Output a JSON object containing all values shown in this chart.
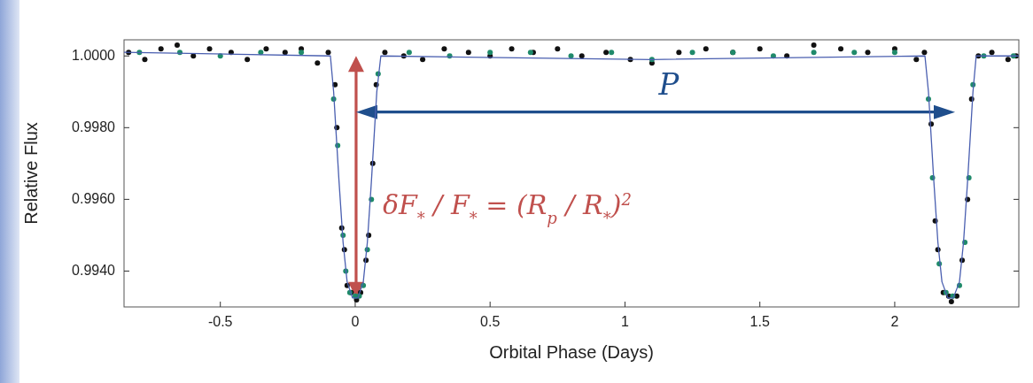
{
  "chart_data": {
    "type": "scatter",
    "xlabel": "Orbital Phase (Days)",
    "ylabel": "Relative Flux",
    "xlim": [
      -0.857,
      2.46
    ],
    "ylim": [
      0.993,
      1.00045
    ],
    "xticks": [
      -0.5,
      0,
      0.5,
      1,
      1.5,
      2
    ],
    "yticks": [
      {
        "value": 0.994,
        "label": "0.9940"
      },
      {
        "value": 0.996,
        "label": "0.9960"
      },
      {
        "value": 0.998,
        "label": "0.9980"
      },
      {
        "value": 1,
        "label": "1.0000"
      }
    ],
    "grid": false,
    "annotations": [
      "P",
      "δF$_{*}$ / F$_{*}$ = (R$_{p}$ / R$_{*}$)$^{2}$"
    ],
    "series": [
      {
        "marker": "circle",
        "color": "#111111",
        "x": [
          -0.84,
          -0.78,
          -0.72,
          -0.66,
          -0.6,
          -0.54,
          -0.46,
          -0.4,
          -0.33,
          -0.26,
          -0.2,
          -0.14,
          -0.1,
          -0.075,
          -0.068,
          -0.05,
          -0.04,
          -0.03,
          -0.015,
          0.005,
          0.02,
          0.04,
          0.05,
          0.065,
          0.078,
          0.11,
          0.18,
          0.25,
          0.33,
          0.42,
          0.5,
          0.58,
          0.66,
          0.75,
          0.84,
          0.93,
          1.02,
          1.1,
          1.2,
          1.3,
          1.4,
          1.5,
          1.6,
          1.7,
          1.8,
          1.9,
          2.0,
          2.08,
          2.11,
          2.135,
          2.15,
          2.16,
          2.18,
          2.2,
          2.21,
          2.23,
          2.25,
          2.27,
          2.285,
          2.31,
          2.36,
          2.42,
          2.45
        ],
        "values": [
          1.0001,
          0.9999,
          1.0002,
          1.0003,
          1.0,
          1.0002,
          1.0001,
          0.9999,
          1.0002,
          1.0001,
          1.0002,
          0.9998,
          1.0001,
          0.9992,
          0.998,
          0.9952,
          0.9946,
          0.9936,
          0.9934,
          0.9932,
          0.9934,
          0.9943,
          0.995,
          0.997,
          0.9992,
          1.0001,
          1.0,
          0.9999,
          1.0002,
          1.0001,
          1.0,
          1.0002,
          1.0001,
          1.0002,
          1.0,
          1.0001,
          0.9999,
          0.9998,
          1.0001,
          1.0002,
          1.0001,
          1.0002,
          1.0,
          1.0003,
          1.0002,
          1.0001,
          1.0002,
          0.9999,
          1.0001,
          0.9981,
          0.9954,
          0.9946,
          0.9934,
          0.9933,
          0.99315,
          0.9933,
          0.9943,
          0.996,
          0.9988,
          1.0,
          1.0001,
          0.9999,
          1.0
        ]
      },
      {
        "marker": "circle",
        "color": "#1f8a6a",
        "x": [
          -0.8,
          -0.65,
          -0.5,
          -0.35,
          -0.2,
          -0.08,
          -0.065,
          -0.045,
          -0.035,
          -0.02,
          0.0,
          0.015,
          0.03,
          0.045,
          0.06,
          0.085,
          0.2,
          0.35,
          0.5,
          0.65,
          0.8,
          0.95,
          1.1,
          1.25,
          1.4,
          1.55,
          1.7,
          1.85,
          2.0,
          2.125,
          2.14,
          2.165,
          2.19,
          2.215,
          2.24,
          2.26,
          2.275,
          2.29,
          2.33,
          2.44
        ],
        "values": [
          1.0001,
          1.0001,
          1.0,
          1.0001,
          1.0001,
          0.9988,
          0.9975,
          0.995,
          0.994,
          0.9934,
          0.9933,
          0.9933,
          0.9936,
          0.9946,
          0.996,
          0.9995,
          1.0001,
          1.0,
          1.0001,
          1.0001,
          1.0,
          1.0001,
          0.9999,
          1.0001,
          1.0001,
          1.0,
          1.0001,
          1.0001,
          1.0001,
          0.9988,
          0.9966,
          0.9942,
          0.9934,
          0.9933,
          0.9936,
          0.9948,
          0.9966,
          0.9992,
          1.0,
          1.0
        ]
      },
      {
        "type": "line",
        "color": "#4a5fb0",
        "x": [
          -0.857,
          -0.092,
          -0.08,
          -0.06,
          -0.045,
          -0.03,
          -0.01,
          0.01,
          0.03,
          0.045,
          0.06,
          0.08,
          0.095,
          1.1,
          2.112,
          2.125,
          2.145,
          2.16,
          2.175,
          2.197,
          2.217,
          2.24,
          2.255,
          2.27,
          2.29,
          2.302,
          2.46
        ],
        "values": [
          1.0001,
          1.0,
          0.999,
          0.9965,
          0.9948,
          0.9937,
          0.99325,
          0.99325,
          0.9937,
          0.9948,
          0.9965,
          0.999,
          1.0,
          0.9999,
          1.0,
          0.999,
          0.9965,
          0.9948,
          0.9937,
          0.99325,
          0.99325,
          0.9937,
          0.9948,
          0.9965,
          0.999,
          1.0,
          1.0
        ]
      }
    ]
  }
}
